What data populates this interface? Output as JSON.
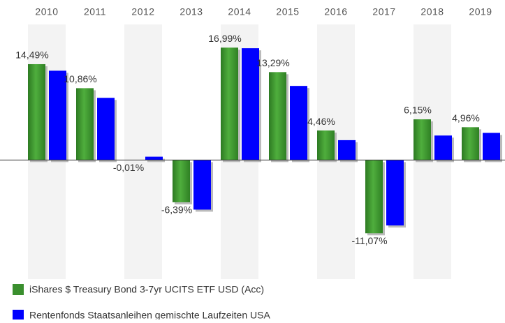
{
  "chart_data": {
    "type": "bar",
    "categories": [
      "2010",
      "2011",
      "2012",
      "2013",
      "2014",
      "2015",
      "2016",
      "2017",
      "2018",
      "2019"
    ],
    "series": [
      {
        "name": "iShares $ Treasury Bond 3-7yr UCITS ETF USD (Acc)",
        "color": "#3a8f2e",
        "values": [
          14.49,
          10.86,
          -0.01,
          -6.39,
          16.99,
          13.29,
          4.46,
          -11.07,
          6.15,
          4.96
        ],
        "value_labels": [
          "14,49%",
          "10,86%",
          "-0,01%",
          "-6,39%",
          "16,99%",
          "13,29%",
          "4,46%",
          "-11,07%",
          "6,15%",
          "4,96%"
        ]
      },
      {
        "name": "Rentenfonds Staatsanleihen gemischte Laufzeiten USA",
        "color": "#0000ff",
        "values": [
          13.5,
          9.4,
          0.5,
          -7.5,
          16.9,
          11.2,
          3.0,
          -9.9,
          3.7,
          4.1
        ]
      }
    ],
    "ylim": [
      -18,
      20.5
    ]
  }
}
